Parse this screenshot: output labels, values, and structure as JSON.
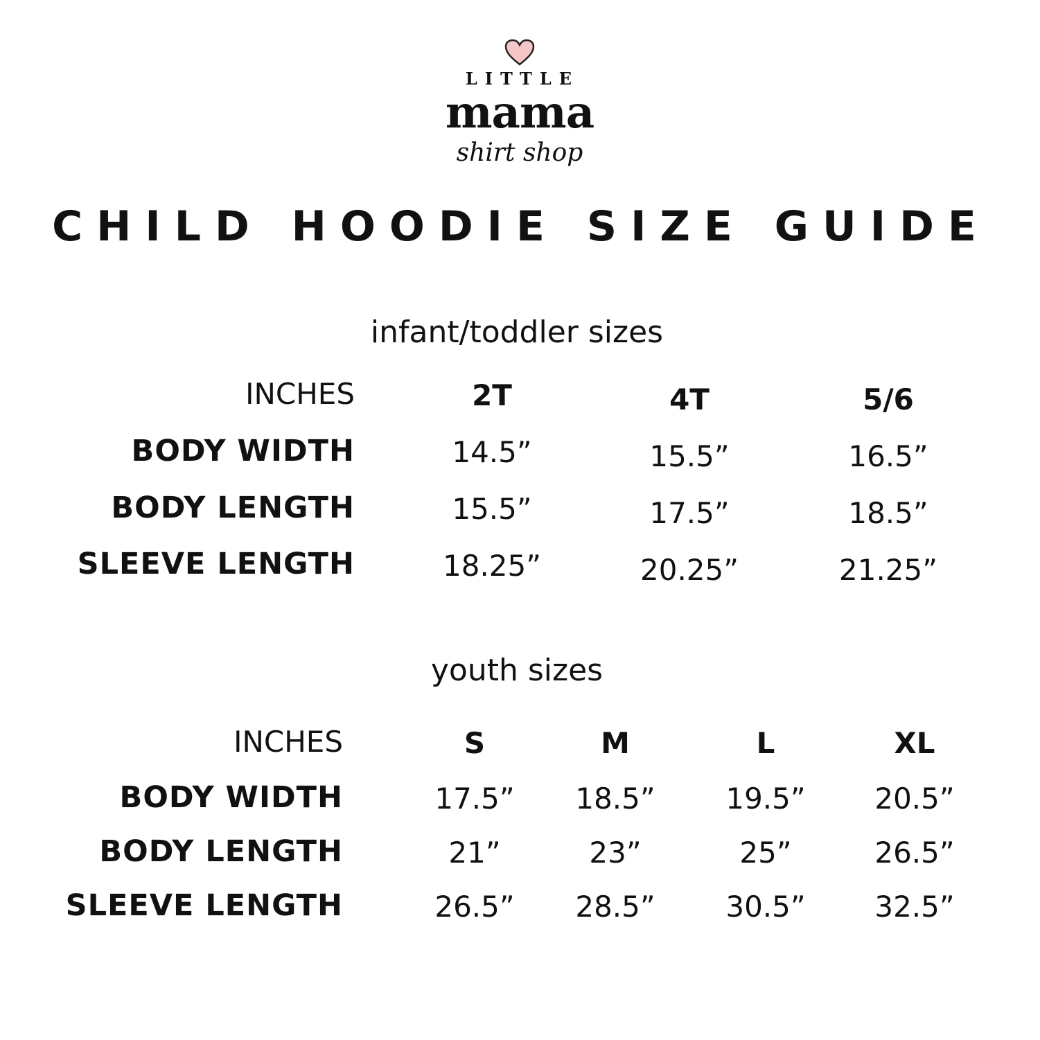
{
  "logo": {
    "top": "LITTLE",
    "main": "mama",
    "script": "shirt shop",
    "heart_color": "#f4c6c8"
  },
  "title": "CHILD HOODIE SIZE GUIDE",
  "infant": {
    "subtitle": "infant/toddler sizes",
    "unit_label": "INCHES",
    "sizes": [
      "2T",
      "4T",
      "5/6"
    ],
    "rows": [
      {
        "label": "BODY WIDTH",
        "values": [
          "14.5”",
          "15.5”",
          "16.5”"
        ]
      },
      {
        "label": "BODY LENGTH",
        "values": [
          "15.5”",
          "17.5”",
          "18.5”"
        ]
      },
      {
        "label": "SLEEVE LENGTH",
        "values": [
          "18.25”",
          "20.25”",
          "21.25”"
        ]
      }
    ]
  },
  "youth": {
    "subtitle": "youth sizes",
    "unit_label": "INCHES",
    "sizes": [
      "S",
      "M",
      "L",
      "XL"
    ],
    "rows": [
      {
        "label": "BODY WIDTH",
        "values": [
          "17.5”",
          "18.5”",
          "19.5”",
          "20.5”"
        ]
      },
      {
        "label": "BODY LENGTH",
        "values": [
          "21”",
          "23”",
          "25”",
          "26.5”"
        ]
      },
      {
        "label": "SLEEVE LENGTH",
        "values": [
          "26.5”",
          "28.5”",
          "30.5”",
          "32.5”"
        ]
      }
    ]
  }
}
